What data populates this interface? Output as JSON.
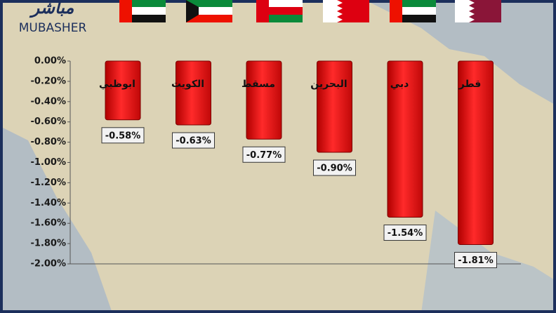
{
  "logo": {
    "arabic": "مباشر",
    "latin": "MUBASHER"
  },
  "chart_data": {
    "type": "bar",
    "categories": [
      "ابوظبي",
      "الكويت",
      "مسقط",
      "البحرين",
      "دبي",
      "قطر"
    ],
    "values": [
      -0.58,
      -0.63,
      -0.77,
      -0.9,
      -1.54,
      -1.81
    ],
    "value_labels": [
      "-0.58%",
      "-0.63%",
      "-0.77%",
      "-0.90%",
      "-1.54%",
      "-1.81%"
    ],
    "color": "#e01818",
    "ylim": [
      0,
      -2
    ],
    "yticks": [
      {
        "value": 0,
        "label": "0.00%"
      },
      {
        "value": -0.2,
        "label": "-0.20%"
      },
      {
        "value": -0.4,
        "label": "-0.40%"
      },
      {
        "value": -0.6,
        "label": "-0.60%"
      },
      {
        "value": -0.8,
        "label": "-0.80%"
      },
      {
        "value": -1.0,
        "label": "-1.00%"
      },
      {
        "value": -1.2,
        "label": "-1.20%"
      },
      {
        "value": -1.4,
        "label": "-1.40%"
      },
      {
        "value": -1.6,
        "label": "-1.60%"
      },
      {
        "value": -1.8,
        "label": "-1.80%"
      },
      {
        "value": -2.0,
        "label": "-2.00%"
      }
    ],
    "grid": false
  }
}
